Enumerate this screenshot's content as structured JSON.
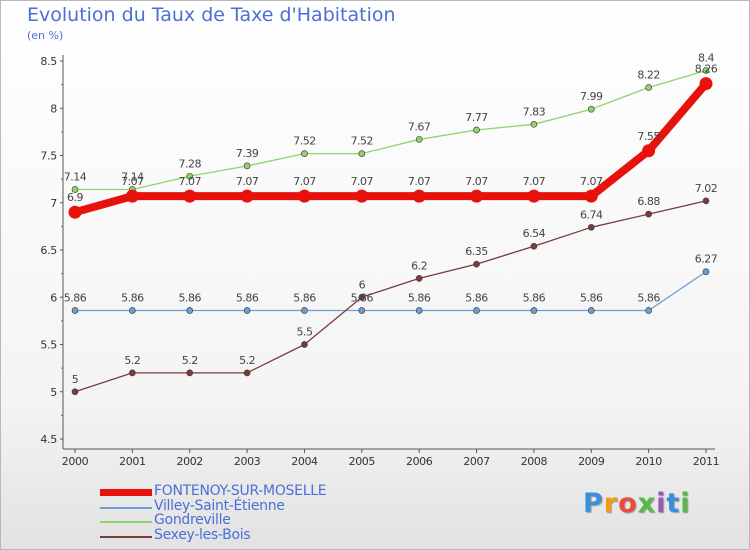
{
  "title": "Evolution du Taux de Taxe d'Habitation",
  "subtitle": "(en %)",
  "logo": {
    "text": "Proxiti",
    "letters": [
      "P",
      "r",
      "o",
      "x",
      "i",
      "t",
      "i"
    ],
    "colors": [
      "#3a8fd9",
      "#f39c12",
      "#e84c3d",
      "#58b847",
      "#9b59b6",
      "#3a8fd9",
      "#58b847"
    ]
  },
  "chart_data": {
    "type": "line",
    "title": "Evolution du Taux de Taxe d'Habitation",
    "ylabel": "(en %)",
    "xlabel": "",
    "x": [
      "2000",
      "2001",
      "2002",
      "2003",
      "2004",
      "2005",
      "2006",
      "2007",
      "2008",
      "2009",
      "2010",
      "2011"
    ],
    "ylim": [
      4.5,
      8.5
    ],
    "yticks": [
      "4.5",
      "5",
      "5.5",
      "6",
      "6.5",
      "7",
      "7.5",
      "8",
      "8.5"
    ],
    "grid": false,
    "legend_position": "bottom-left",
    "series": [
      {
        "name": "FONTENOY-SUR-MOSELLE",
        "color": "#e8120c",
        "bold": true,
        "values": [
          6.9,
          7.07,
          7.07,
          7.07,
          7.07,
          7.07,
          7.07,
          7.07,
          7.07,
          7.07,
          7.55,
          8.26
        ],
        "labels": [
          "6.9",
          "7.07",
          "7.07",
          "7.07",
          "7.07",
          "7.07",
          "7.07",
          "7.07",
          "7.07",
          "7.07",
          "7.55",
          "8.26"
        ]
      },
      {
        "name": "Villey-Saint-Étienne",
        "color": "#6a9fd4",
        "bold": false,
        "values": [
          5.86,
          5.86,
          5.86,
          5.86,
          5.86,
          5.86,
          5.86,
          5.86,
          5.86,
          5.86,
          5.86,
          6.27
        ],
        "labels": [
          "5.86",
          "5.86",
          "5.86",
          "5.86",
          "5.86",
          "5.86",
          "5.86",
          "5.86",
          "5.86",
          "5.86",
          "5.86",
          "6.27"
        ]
      },
      {
        "name": "Gondreville",
        "color": "#8fd46a",
        "bold": false,
        "values": [
          7.14,
          7.14,
          7.28,
          7.39,
          7.52,
          7.52,
          7.67,
          7.77,
          7.83,
          7.99,
          8.22,
          8.4
        ],
        "labels": [
          "7.14",
          "7.14",
          "7.28",
          "7.39",
          "7.52",
          "7.52",
          "7.67",
          "7.77",
          "7.83",
          "7.99",
          "8.22",
          "8.4"
        ]
      },
      {
        "name": "Sexey-les-Bois",
        "color": "#7a3b3b",
        "bold": false,
        "values": [
          5,
          5.2,
          5.2,
          5.2,
          5.5,
          6,
          6.2,
          6.35,
          6.54,
          6.74,
          6.88,
          7.02
        ],
        "labels": [
          "5",
          "5.2",
          "5.2",
          "5.2",
          "5.5",
          "6",
          "6.2",
          "6.35",
          "6.54",
          "6.74",
          "6.88",
          "7.02"
        ]
      }
    ]
  }
}
